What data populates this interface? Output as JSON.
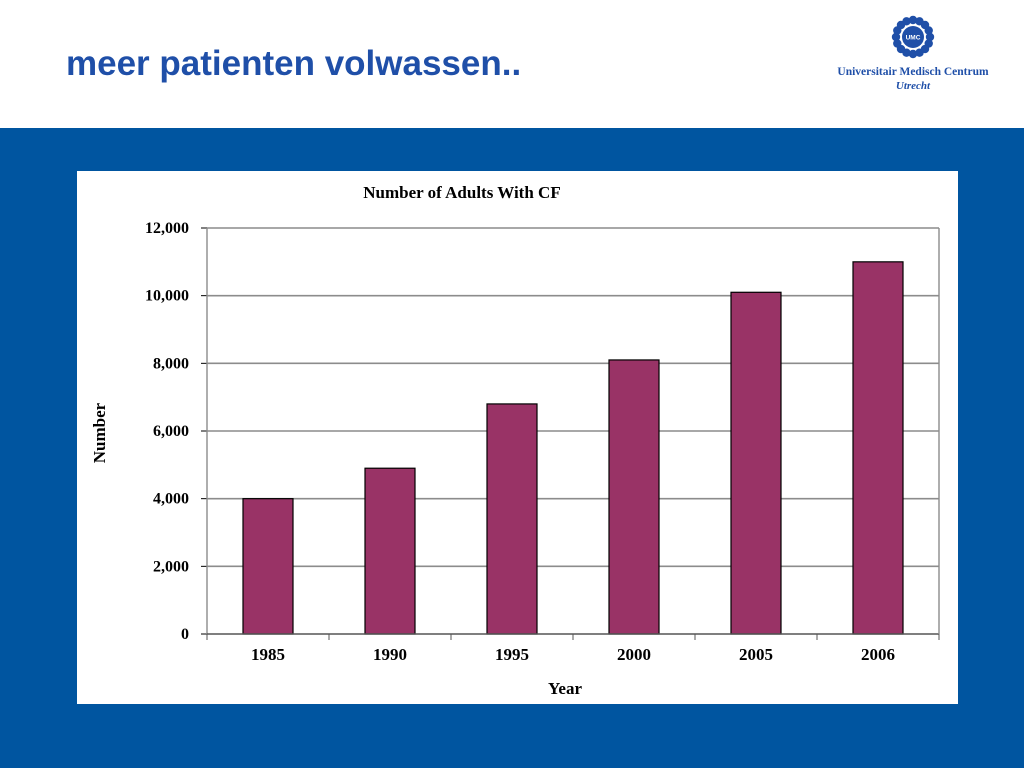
{
  "slide": {
    "title": "meer patienten volwassen..",
    "logo": {
      "name": "Universitair Medisch Centrum",
      "city": "Utrecht",
      "mark_text": "UMC",
      "color": "#1f4fa8"
    },
    "band_color": "#0055a0"
  },
  "chart_data": {
    "type": "bar",
    "title": "Number of Adults With CF",
    "xlabel": "Year",
    "ylabel": "Number",
    "categories": [
      "1985",
      "1990",
      "1995",
      "2000",
      "2005",
      "2006"
    ],
    "values": [
      4000,
      4900,
      6800,
      8100,
      10100,
      11000
    ],
    "ylim": [
      0,
      12000
    ],
    "yticks": [
      0,
      2000,
      4000,
      6000,
      8000,
      10000,
      12000
    ],
    "ytick_labels": [
      "0",
      "2,000",
      "4,000",
      "6,000",
      "8,000",
      "10,000",
      "12,000"
    ],
    "bar_color": "#993366",
    "grid": true,
    "legend": "none"
  }
}
